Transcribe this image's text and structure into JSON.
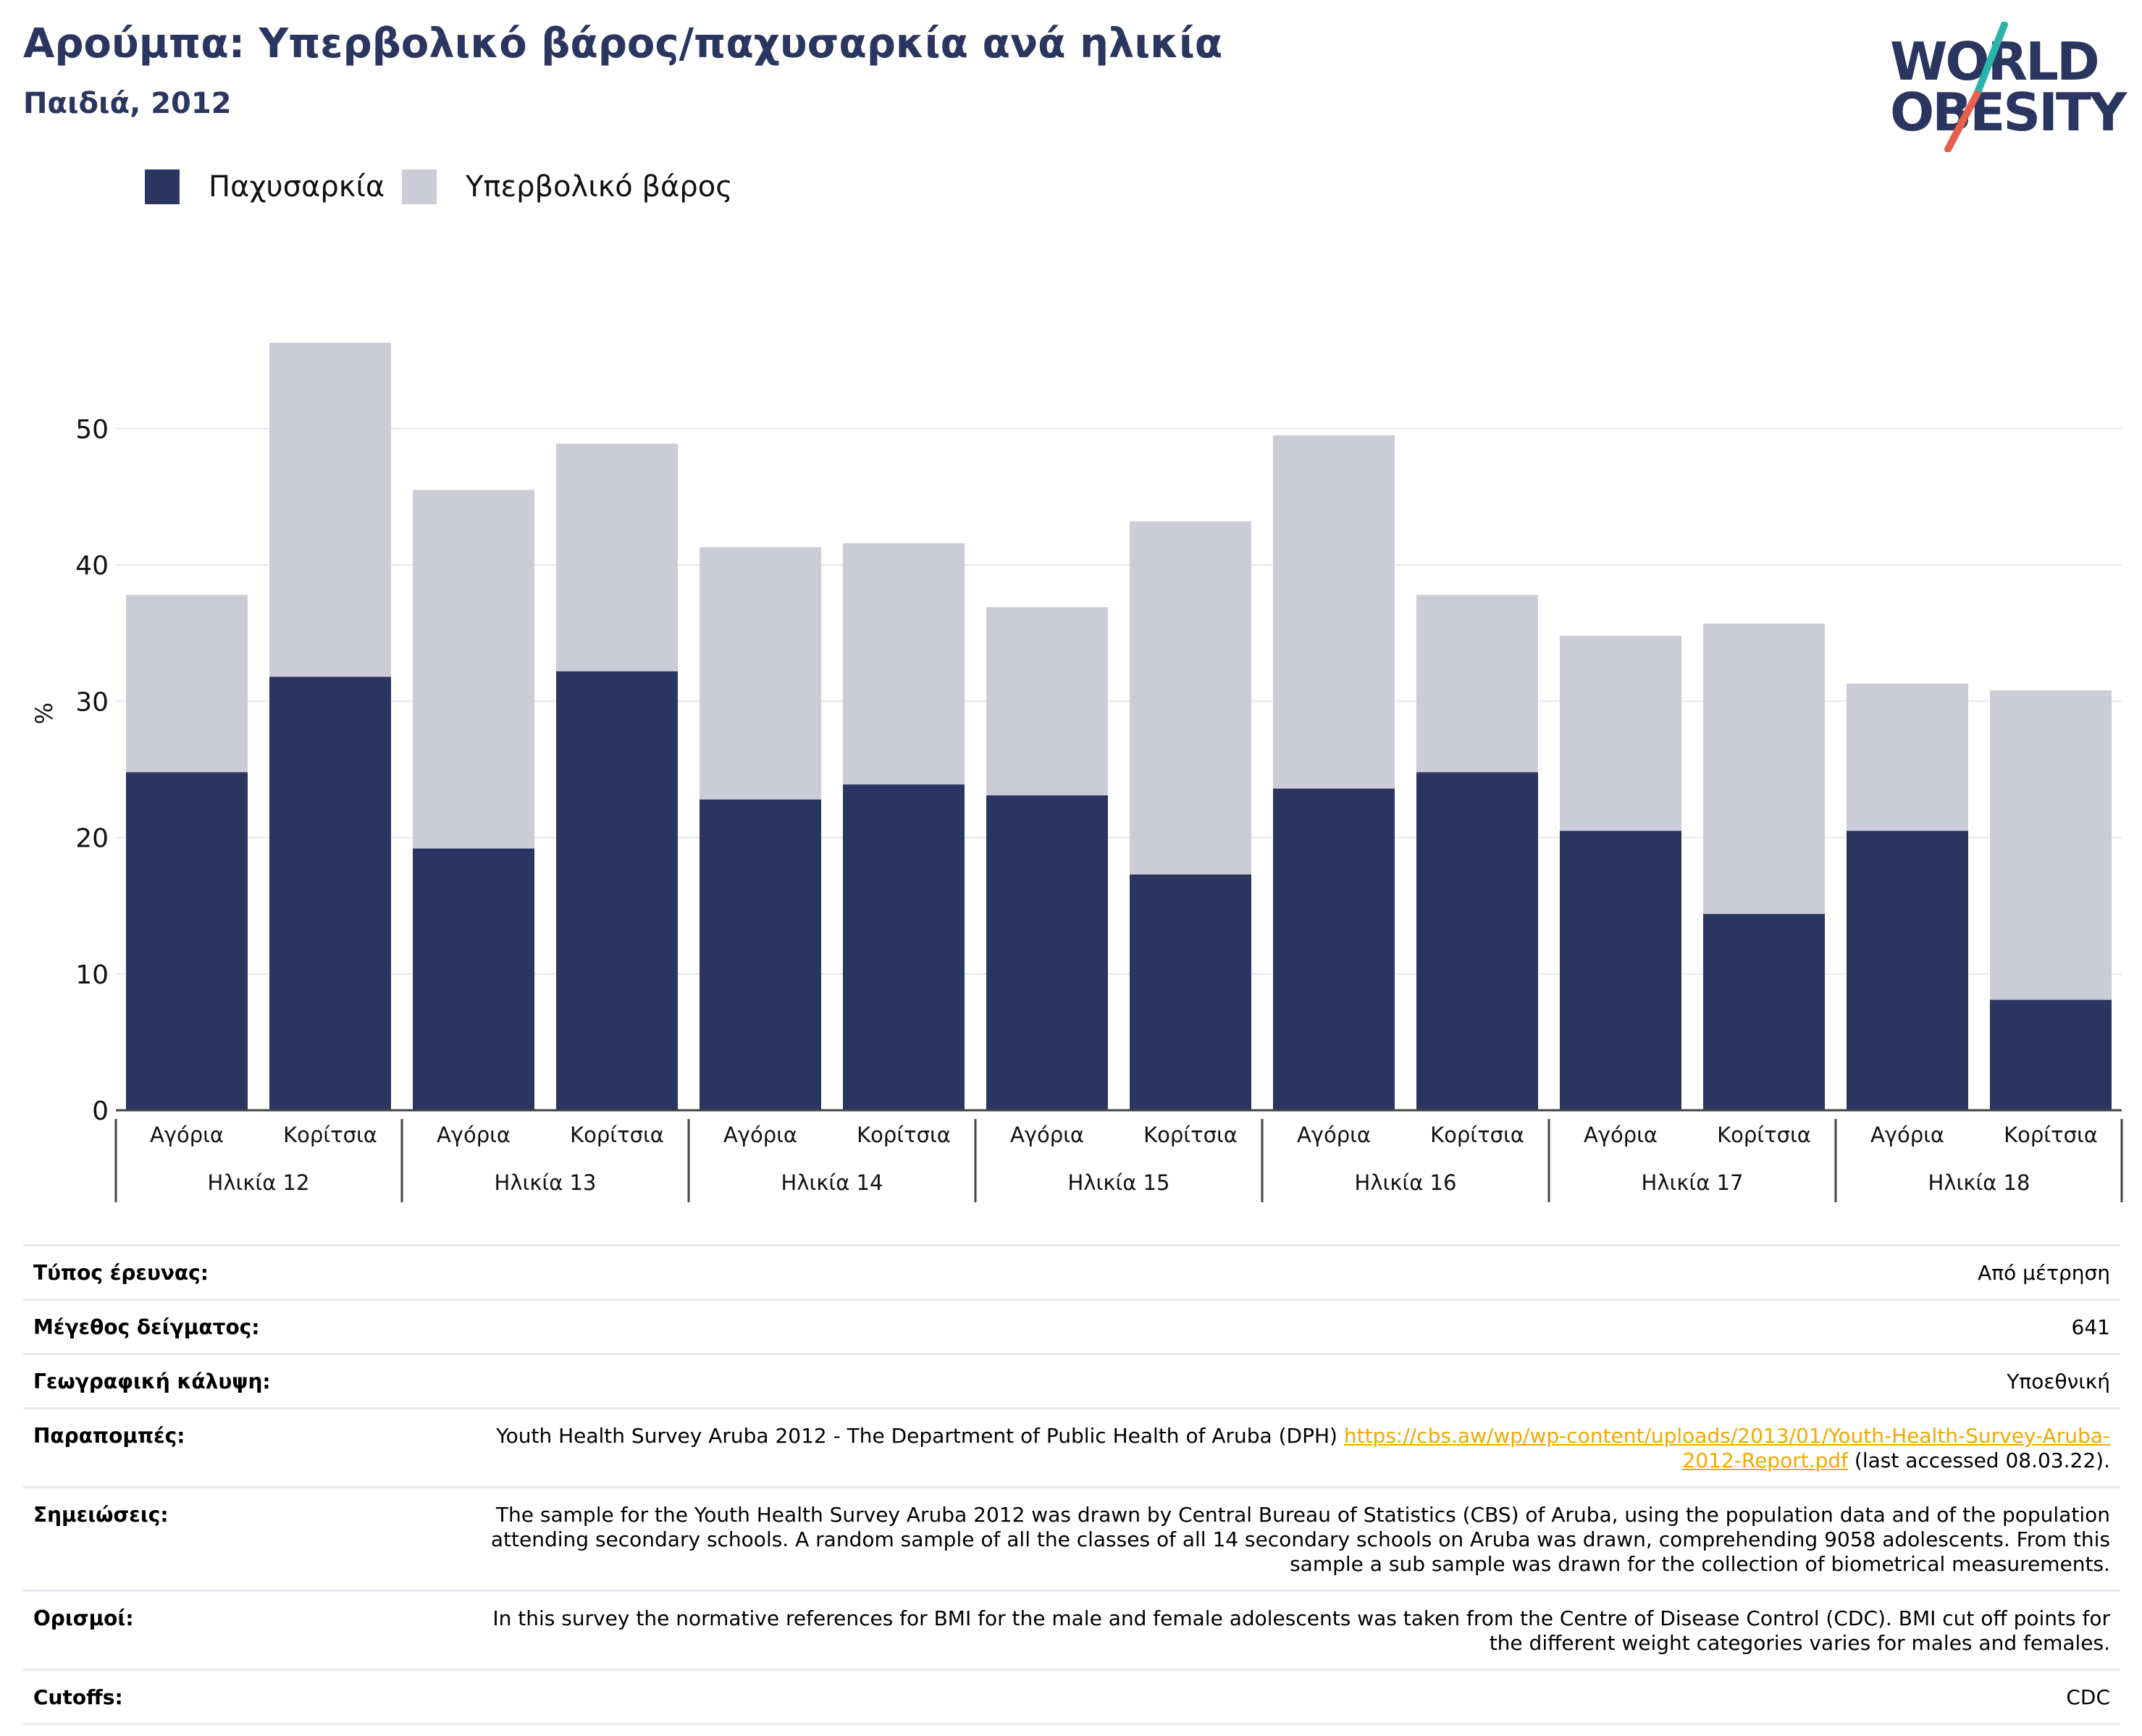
{
  "header": {
    "title": "Αρούμπα: Υπερβολικό βάρος/παχυσαρκία ανά ηλικία",
    "subtitle": "Παιδιά, 2012"
  },
  "logo": {
    "line1": "WORLD",
    "line2": "OBESITY",
    "colors": {
      "text": "#2a365f",
      "slash_top": "#2ab3a8",
      "slash_bottom": "#e8604c"
    }
  },
  "legend": [
    {
      "name": "Παχυσαρκία",
      "color": "#2a365f"
    },
    {
      "name": "Υπερβολικό βάρος",
      "color": "#cbccd8"
    }
  ],
  "chart_data": {
    "type": "bar",
    "stacked": true,
    "ylabel": "%",
    "ylim": [
      0,
      57
    ],
    "yticks": [
      0,
      10,
      20,
      30,
      40,
      50
    ],
    "grid": true,
    "categories": [
      "Αγόρια",
      "Κορίτσια",
      "Αγόρια",
      "Κορίτσια",
      "Αγόρια",
      "Κορίτσια",
      "Αγόρια",
      "Κορίτσια",
      "Αγόρια",
      "Κορίτσια",
      "Αγόρια",
      "Κορίτσια",
      "Αγόρια",
      "Κορίτσια"
    ],
    "groups": [
      "Ηλικία 12",
      "Ηλικία 13",
      "Ηλικία 14",
      "Ηλικία 15",
      "Ηλικία 16",
      "Ηλικία 17",
      "Ηλικία 18"
    ],
    "series": [
      {
        "name": "Παχυσαρκία",
        "color": "#2a365f",
        "values": [
          24.8,
          31.8,
          19.2,
          32.2,
          22.8,
          23.9,
          23.1,
          17.3,
          23.6,
          24.8,
          20.5,
          14.4,
          20.5,
          8.1
        ]
      },
      {
        "name": "Υπερβολικό βάρος",
        "color": "#cbccd8",
        "values": [
          13.0,
          24.5,
          26.3,
          16.7,
          18.5,
          17.7,
          13.8,
          25.9,
          25.9,
          13.0,
          14.3,
          21.3,
          10.8,
          22.7
        ]
      }
    ]
  },
  "meta": {
    "rows": [
      {
        "label": "Τύπος έρευνας:",
        "value": "Από μέτρηση"
      },
      {
        "label": "Μέγεθος δείγματος:",
        "value": "641"
      },
      {
        "label": "Γεωγραφική κάλυψη:",
        "value": "Υποεθνική"
      },
      {
        "label": "Παραπομπές:",
        "value": "Youth Health Survey Aruba 2012 - The Department of Public Health of Aruba (DPH) ",
        "link": "https://cbs.aw/wp/wp-content/uploads/2013/01/Youth-Health-Survey-Aruba-2012-Report.pdf",
        "after": " (last accessed 08.03.22)."
      },
      {
        "label": "Σημειώσεις:",
        "value": "The sample for the Youth Health Survey Aruba 2012 was drawn by Central Bureau of Statistics (CBS) of Aruba, using the population data and of the population attending secondary schools. A random sample of all the classes of all 14 secondary schools on Aruba was drawn, comprehending 9058 adolescents. From this sample a sub sample was drawn for the collection of biometrical measurements."
      },
      {
        "label": "Ορισμοί:",
        "value": "In this survey the normative references for BMI for the male and female adolescents was taken from the Centre of Disease Control (CDC). BMI cut off points for the different weight categories varies for males and females."
      },
      {
        "label": "Cutoffs:",
        "value": "CDC"
      }
    ]
  }
}
